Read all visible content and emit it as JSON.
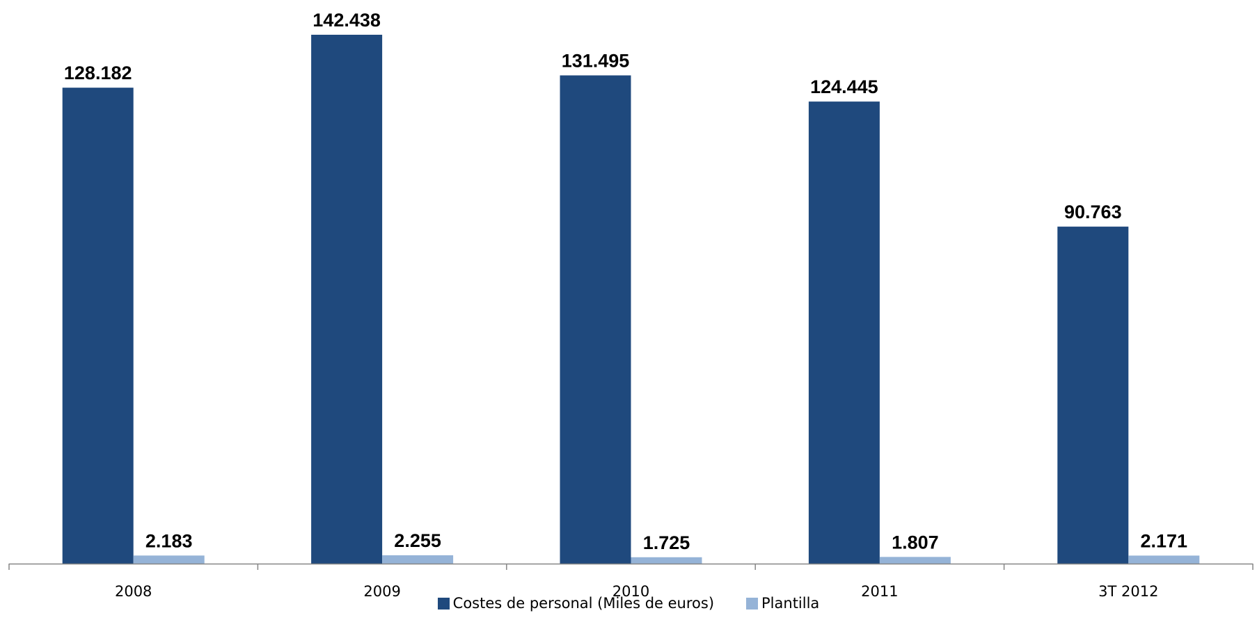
{
  "chart_data": {
    "type": "bar",
    "categories": [
      "2008",
      "2009",
      "2010",
      "2011",
      "3T 2012"
    ],
    "series": [
      {
        "name": "Costes de personal (Miles de euros)",
        "color": "#1f497d",
        "values": [
          128182,
          142438,
          131495,
          124445,
          90763
        ],
        "labels": [
          "128.182",
          "142.438",
          "131.495",
          "124.445",
          "90.763"
        ]
      },
      {
        "name": "Plantilla",
        "color": "#95b3d7",
        "values": [
          2183,
          2255,
          1725,
          1807,
          2171
        ],
        "labels": [
          "2.183",
          "2.255",
          "1.725",
          "1.807",
          "2.171"
        ]
      }
    ],
    "title": "",
    "xlabel": "",
    "ylabel": "",
    "grid": false,
    "legend": "bottom",
    "data_labels": true
  }
}
